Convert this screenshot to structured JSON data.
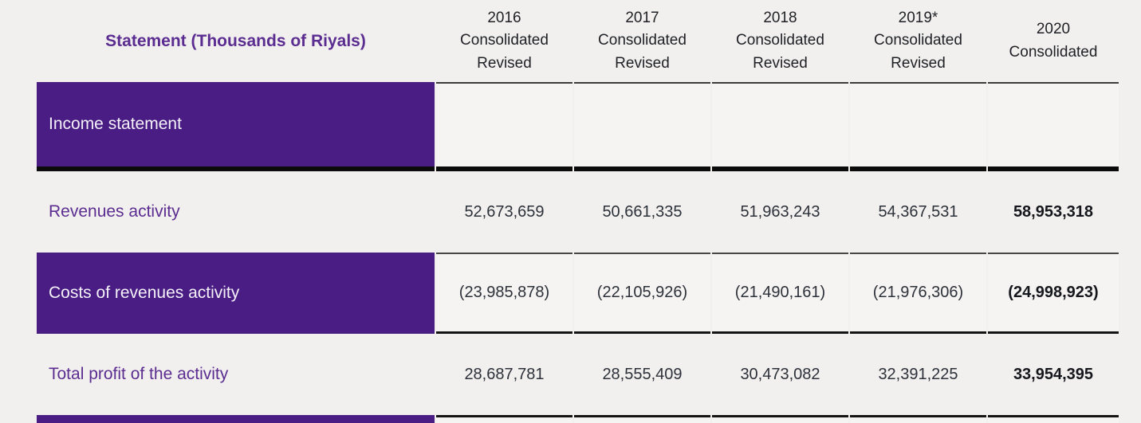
{
  "table": {
    "statement_header": "Statement (Thousands of Riyals)",
    "column_headers": [
      "2016\nConsolidated\nRevised",
      "2017\nConsolidated\nRevised",
      "2018\nConsolidated\nRevised",
      "2019*\nConsolidated\nRevised",
      "2020\nConsolidated"
    ],
    "rows": [
      {
        "label": "Income statement",
        "style": "section",
        "values": [
          "",
          "",
          "",
          "",
          ""
        ]
      },
      {
        "label": "Revenues activity",
        "style": "plain",
        "values": [
          "52,673,659",
          "50,661,335",
          "51,963,243",
          "54,367,531",
          "58,953,318"
        ]
      },
      {
        "label": "Costs of revenues activity",
        "style": "banded",
        "values": [
          "(23,985,878)",
          "(22,105,926)",
          "(21,490,161)",
          "(21,976,306)",
          "(24,998,923)"
        ]
      },
      {
        "label": "Total profit of the activity",
        "style": "plain",
        "values": [
          "28,687,781",
          "28,555,409",
          "30,473,082",
          "32,391,225",
          "33,954,395"
        ]
      },
      {
        "label": "",
        "style": "banded-partial",
        "values": [
          "",
          "",
          "",
          "",
          ""
        ]
      }
    ],
    "colors": {
      "page_background": "#f1f0ee",
      "cell_background": "#f5f4f2",
      "band_purple": "#4a1d84",
      "text_purple": "#5b2d91",
      "number_text": "#2d3139",
      "bold_number_text": "#15171c",
      "thick_rule": "#0b0b0b",
      "thin_rule": "#3c3c3c"
    }
  },
  "chart_data": {
    "type": "table",
    "title": "Statement (Thousands of Riyals)",
    "columns": [
      "2016 Consolidated Revised",
      "2017 Consolidated Revised",
      "2018 Consolidated Revised",
      "2019* Consolidated Revised",
      "2020 Consolidated"
    ],
    "sections": [
      "Income statement"
    ],
    "rows": [
      {
        "label": "Revenues activity",
        "values": [
          52673659,
          50661335,
          51963243,
          54367531,
          58953318
        ]
      },
      {
        "label": "Costs of revenues activity",
        "values": [
          -23985878,
          -22105926,
          -21490161,
          -21976306,
          -24998923
        ]
      },
      {
        "label": "Total profit of the activity",
        "values": [
          28687781,
          28555409,
          30473082,
          32391225,
          33954395
        ]
      }
    ]
  }
}
